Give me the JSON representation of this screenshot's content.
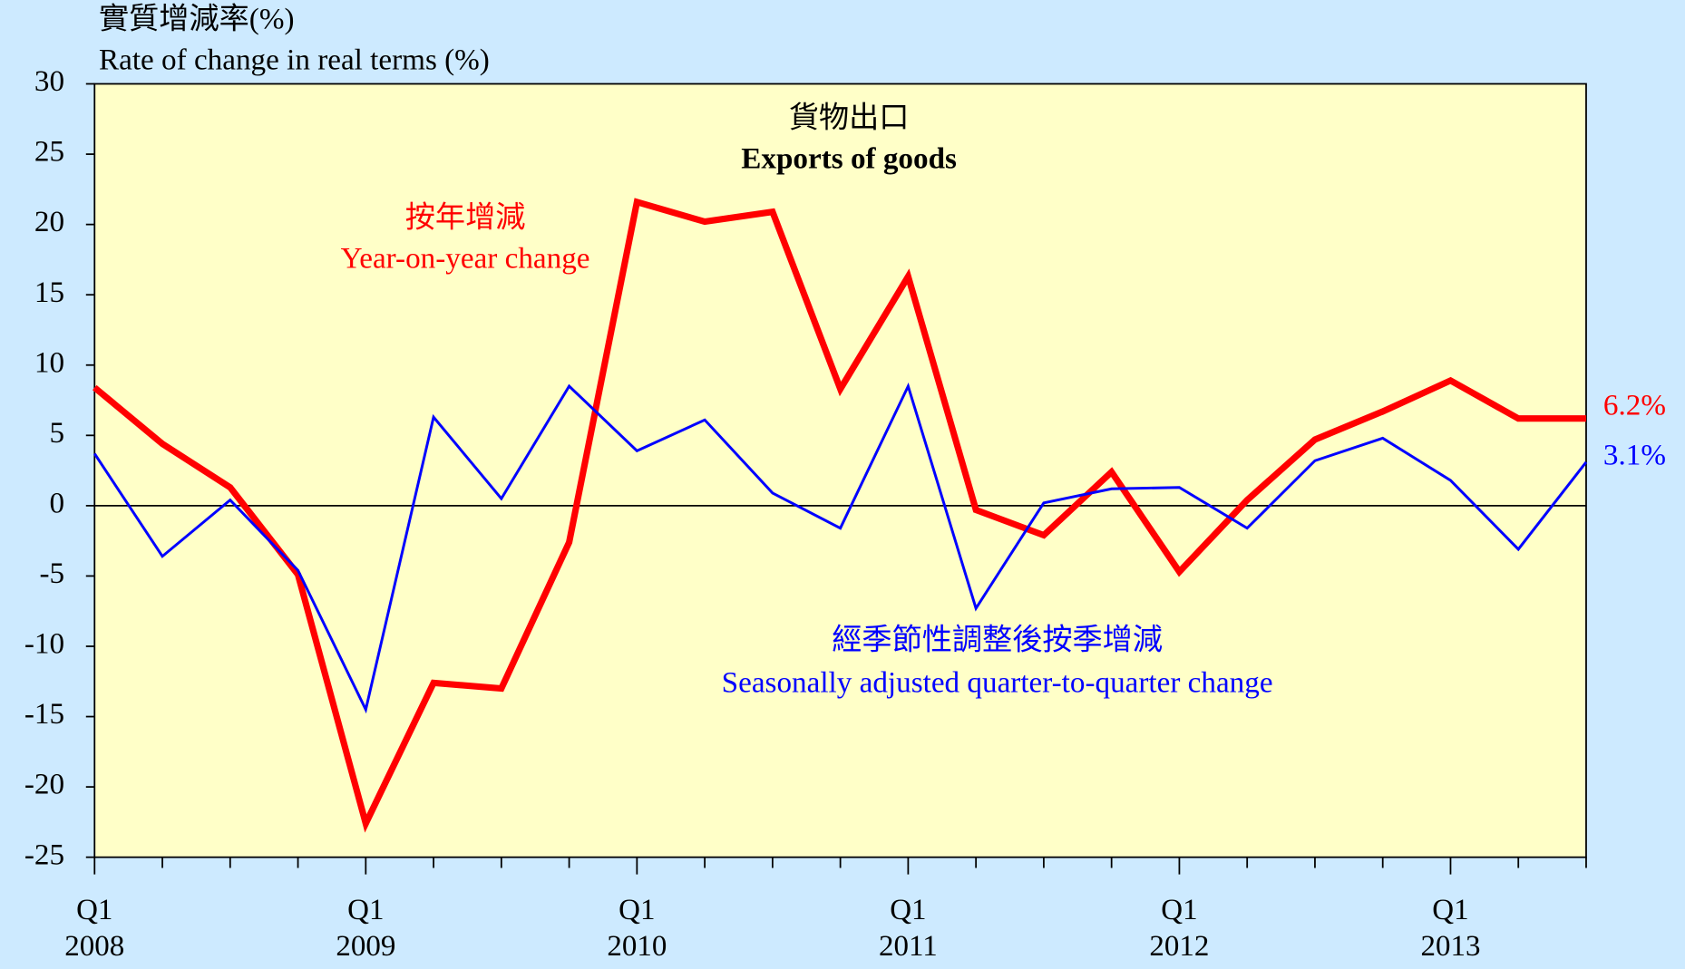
{
  "chart_data": {
    "type": "line",
    "title": "貨物出口",
    "subtitle": "Exports of goods",
    "y_label": "實質增減率(%)",
    "y_label_en": "Rate of change in real terms (%)",
    "categories": [
      "Q1\n2008",
      null,
      null,
      null,
      "Q1\n2009",
      null,
      null,
      null,
      "Q1\n2010",
      null,
      null,
      null,
      "Q1\n2011",
      null,
      null,
      null,
      "Q1\n2012",
      null,
      null,
      null,
      "Q1\n2013",
      null,
      null
    ],
    "series": [
      {
        "name": "Year-on-year change",
        "label_zh": "按年增減",
        "color": "#ff0000",
        "values": [
          8.4,
          4.4,
          1.3,
          -4.9,
          -22.6,
          -12.6,
          -13.0,
          -2.6,
          21.6,
          20.2,
          20.9,
          8.3,
          16.3,
          -0.3,
          -2.1,
          2.4,
          -4.7,
          0.4,
          4.7,
          6.7,
          8.9,
          6.2,
          6.2
        ],
        "value_labels": [
          null,
          null,
          null,
          null,
          null,
          null,
          null,
          null,
          null,
          null,
          null,
          null,
          null,
          null,
          null,
          null,
          null,
          null,
          null,
          null,
          null,
          null,
          "6.2%"
        ]
      },
      {
        "name": "Seasonally adjusted quarter-to-quarter change",
        "label_zh": "經季節性調整後按季增減",
        "color": "#0000ff",
        "values": [
          3.7,
          -3.6,
          0.4,
          -4.6,
          -14.5,
          6.3,
          0.5,
          8.5,
          3.9,
          6.1,
          0.9,
          -1.6,
          8.5,
          -7.3,
          0.2,
          1.2,
          1.3,
          -1.6,
          3.2,
          4.8,
          1.8,
          -3.1,
          3.1
        ],
        "value_labels": [
          null,
          null,
          null,
          null,
          null,
          null,
          null,
          null,
          null,
          null,
          null,
          null,
          null,
          null,
          null,
          null,
          null,
          null,
          null,
          null,
          null,
          null,
          "3.1%"
        ]
      }
    ],
    "ylim": [
      -25,
      30
    ],
    "yticks": [
      -25,
      -20,
      -15,
      -10,
      -5,
      0,
      5,
      10,
      15,
      20,
      25,
      30
    ]
  }
}
